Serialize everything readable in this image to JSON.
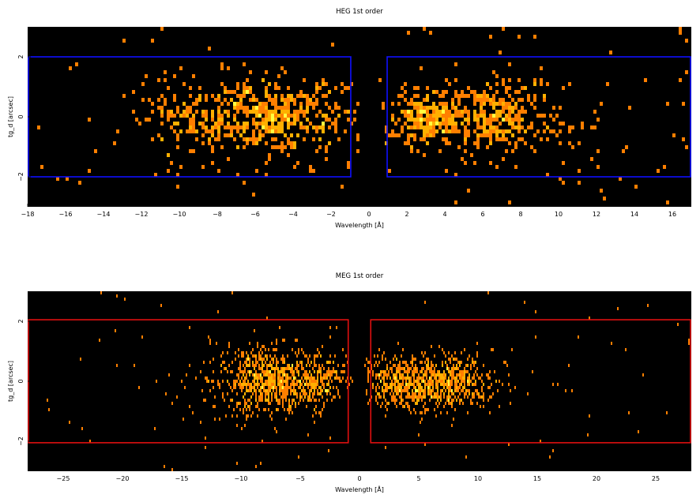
{
  "chart_data": [
    {
      "type": "heatmap",
      "title": "HEG 1st order",
      "xlabel": "Wavelength [Å]",
      "ylabel": "tg_d [arcsec]",
      "xlim": [
        -18,
        17
      ],
      "ylim": [
        -3,
        3
      ],
      "xticks": [
        -18,
        -16,
        -14,
        -12,
        -10,
        -8,
        -6,
        -4,
        -2,
        0,
        2,
        4,
        6,
        8,
        10,
        12,
        14,
        16
      ],
      "xtick_labels": [
        "−18",
        "−16",
        "−14",
        "−12",
        "−10",
        "−8",
        "−6",
        "−4",
        "−2",
        "0",
        "2",
        "4",
        "6",
        "8",
        "10",
        "12",
        "14",
        "16"
      ],
      "yticks": [
        -2,
        0,
        2
      ],
      "ytick_labels": [
        "−2",
        "0",
        "2"
      ],
      "regions": [
        {
          "color": "#1010ff",
          "x": [
            -17.96,
            -0.96
          ],
          "y": [
            -2.0,
            2.0
          ]
        },
        {
          "color": "#1010ff",
          "x": [
            0.96,
            17.0
          ],
          "y": [
            -2.0,
            2.0
          ]
        }
      ],
      "clusters": [
        {
          "x": -5.2,
          "y": 0,
          "sx": 2.2,
          "sy": 0.6,
          "n": 520
        },
        {
          "x": -9.5,
          "y": 0,
          "sx": 1.5,
          "sy": 0.75,
          "n": 110
        },
        {
          "x": 3.0,
          "y": 0,
          "sx": 0.9,
          "sy": 0.45,
          "n": 240
        },
        {
          "x": 6.3,
          "y": 0,
          "sx": 1.3,
          "sy": 0.55,
          "n": 280
        },
        {
          "x": 9.5,
          "y": 0,
          "sx": 2.0,
          "sy": 0.8,
          "n": 60
        }
      ],
      "background_counts": 110,
      "grid": false,
      "colormap": [
        "#000000",
        "#ff7f00",
        "#ffb000",
        "#ffff40"
      ]
    },
    {
      "type": "heatmap",
      "title": "MEG 1st order",
      "xlabel": "Wavelength [Å]",
      "ylabel": "tg_d [arcsec]",
      "xlim": [
        -28,
        28
      ],
      "ylim": [
        -3,
        3
      ],
      "xticks": [
        -25,
        -20,
        -15,
        -10,
        -5,
        0,
        5,
        10,
        15,
        20,
        25
      ],
      "xtick_labels": [
        "−25",
        "−20",
        "−15",
        "−10",
        "−5",
        "0",
        "5",
        "10",
        "15",
        "20",
        "25"
      ],
      "yticks": [
        -2,
        0,
        2
      ],
      "ytick_labels": [
        "−2",
        "0",
        "2"
      ],
      "regions": [
        {
          "color": "#e01010",
          "x": [
            -28,
            -0.95
          ],
          "y": [
            -2.05,
            2.05
          ]
        },
        {
          "color": "#e01010",
          "x": [
            0.95,
            28
          ],
          "y": [
            -2.05,
            2.05
          ]
        }
      ],
      "clusters": [
        {
          "x": -7.5,
          "y": 0,
          "sx": 1.9,
          "sy": 0.5,
          "n": 620
        },
        {
          "x": -3.3,
          "y": 0,
          "sx": 1.1,
          "sy": 0.5,
          "n": 220
        },
        {
          "x": 6.8,
          "y": 0,
          "sx": 2.4,
          "sy": 0.45,
          "n": 700
        },
        {
          "x": 3.0,
          "y": 0,
          "sx": 1.3,
          "sy": 0.4,
          "n": 220
        },
        {
          "x": -9.0,
          "y": 0,
          "sx": 3.0,
          "sy": 0.9,
          "n": 160
        }
      ],
      "background_counts": 90,
      "grid": false,
      "colormap": [
        "#000000",
        "#ff7f00",
        "#ffb000",
        "#ffff40"
      ]
    }
  ]
}
